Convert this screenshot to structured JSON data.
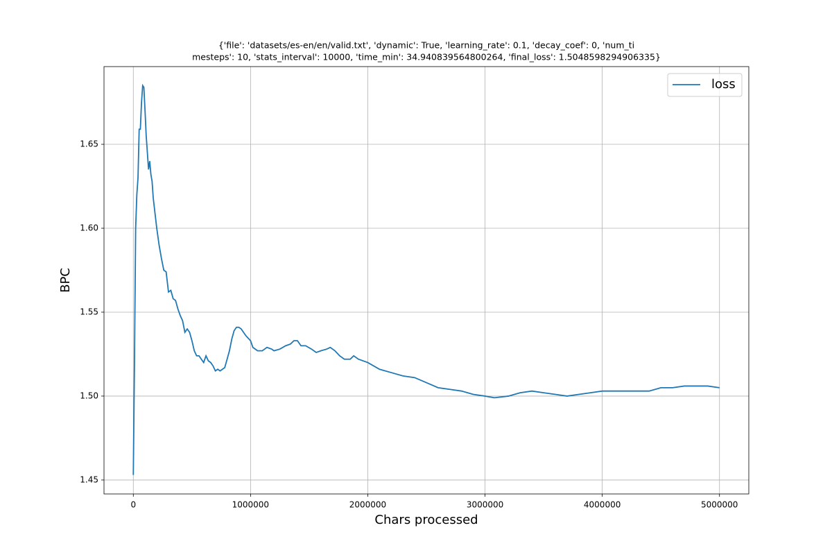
{
  "chart_data": {
    "type": "line",
    "title": [
      "{'file': 'datasets/es-en/en/valid.txt', 'dynamic': True, 'learning_rate': 0.1, 'decay_coef': 0, 'num_ti",
      "mesteps': 10, 'stats_interval': 10000, 'time_min': 34.940839564800264, 'final_loss': 1.5048598294906335}"
    ],
    "x_label": "Chars processed",
    "y_label": "BPC",
    "x": [
      0,
      10000,
      20000,
      30000,
      40000,
      50000,
      60000,
      70000,
      80000,
      90000,
      100000,
      110000,
      120000,
      130000,
      140000,
      150000,
      160000,
      170000,
      180000,
      200000,
      220000,
      240000,
      260000,
      280000,
      300000,
      320000,
      340000,
      360000,
      380000,
      400000,
      420000,
      440000,
      460000,
      480000,
      500000,
      520000,
      540000,
      560000,
      580000,
      600000,
      620000,
      640000,
      660000,
      680000,
      700000,
      720000,
      740000,
      760000,
      780000,
      800000,
      820000,
      840000,
      860000,
      880000,
      900000,
      920000,
      940000,
      960000,
      1000000,
      1020000,
      1060000,
      1100000,
      1140000,
      1180000,
      1200000,
      1250000,
      1300000,
      1340000,
      1370000,
      1400000,
      1430000,
      1470000,
      1520000,
      1560000,
      1600000,
      1650000,
      1680000,
      1720000,
      1760000,
      1800000,
      1850000,
      1880000,
      1920000,
      2000000,
      2100000,
      2200000,
      2300000,
      2400000,
      2500000,
      2600000,
      2700000,
      2800000,
      2900000,
      3000000,
      3080000,
      3200000,
      3300000,
      3400000,
      3500000,
      3600000,
      3700000,
      3800000,
      3900000,
      4000000,
      4100000,
      4200000,
      4300000,
      4400000,
      4500000,
      4600000,
      4700000,
      4800000,
      4900000,
      5000000
    ],
    "series": [
      {
        "name": "loss",
        "color": "#1f77b4",
        "values": [
          1.453,
          1.52,
          1.6,
          1.62,
          1.63,
          1.659,
          1.659,
          1.675,
          1.685,
          1.684,
          1.67,
          1.655,
          1.645,
          1.635,
          1.64,
          1.632,
          1.628,
          1.618,
          1.612,
          1.6,
          1.59,
          1.582,
          1.575,
          1.574,
          1.562,
          1.563,
          1.558,
          1.557,
          1.552,
          1.548,
          1.545,
          1.538,
          1.54,
          1.538,
          1.533,
          1.527,
          1.524,
          1.524,
          1.522,
          1.52,
          1.524,
          1.521,
          1.52,
          1.518,
          1.515,
          1.516,
          1.515,
          1.516,
          1.517,
          1.522,
          1.527,
          1.534,
          1.539,
          1.541,
          1.541,
          1.54,
          1.538,
          1.536,
          1.533,
          1.529,
          1.527,
          1.527,
          1.529,
          1.528,
          1.527,
          1.528,
          1.53,
          1.531,
          1.533,
          1.533,
          1.53,
          1.53,
          1.528,
          1.526,
          1.527,
          1.528,
          1.529,
          1.527,
          1.524,
          1.522,
          1.522,
          1.524,
          1.522,
          1.52,
          1.516,
          1.514,
          1.512,
          1.511,
          1.508,
          1.505,
          1.504,
          1.503,
          1.501,
          1.5,
          1.499,
          1.5,
          1.502,
          1.503,
          1.502,
          1.501,
          1.5,
          1.501,
          1.502,
          1.503,
          1.503,
          1.503,
          1.503,
          1.503,
          1.505,
          1.505,
          1.506,
          1.506,
          1.506,
          1.505
        ]
      }
    ],
    "xlim": [
      -250000,
      5250000
    ],
    "ylim": [
      1.4417,
      1.6963
    ],
    "xticks": [
      0,
      1000000,
      2000000,
      3000000,
      4000000,
      5000000
    ],
    "yticks": [
      1.45,
      {
        "value": 1.5,
        "label": "1.50"
      },
      1.55,
      {
        "value": 1.6,
        "label": "1.60"
      },
      1.65
    ],
    "grid": true,
    "legend": "upper right"
  }
}
